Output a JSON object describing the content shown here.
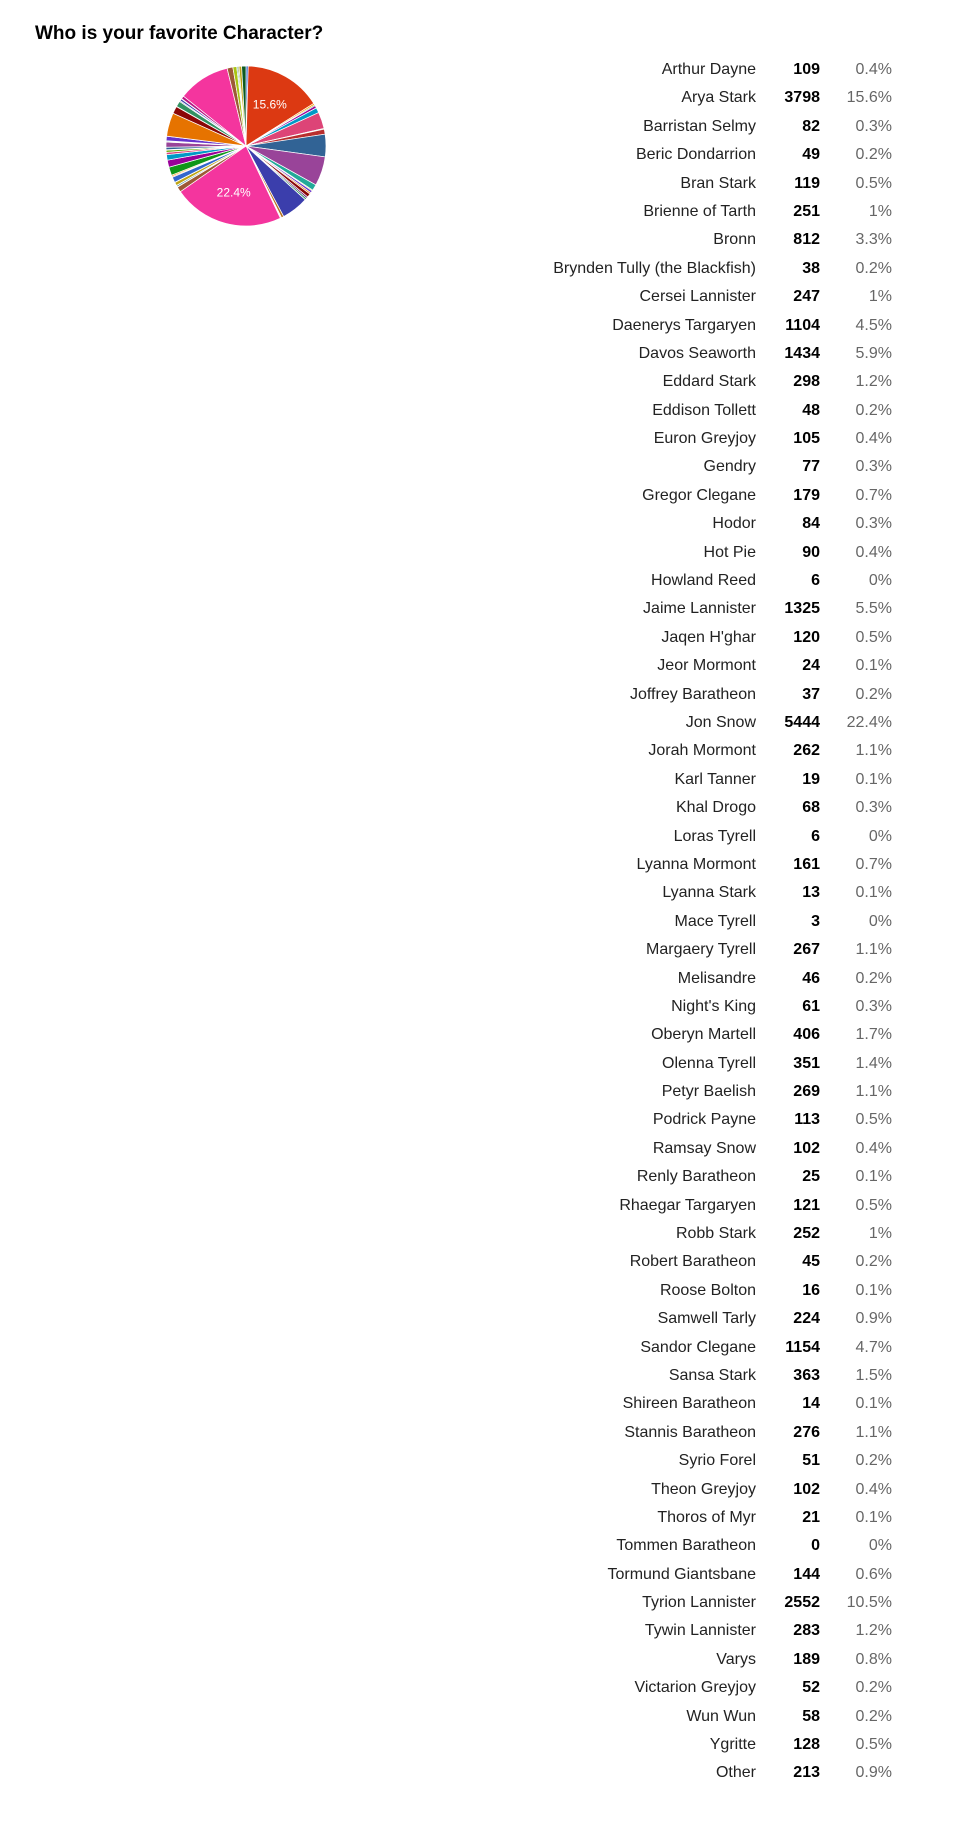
{
  "chart_data": {
    "type": "pie",
    "title": "Who is your favorite Character?",
    "slice_labels_shown": [
      "Jon Snow",
      "Arya Stark"
    ],
    "items": [
      {
        "name": "Arthur Dayne",
        "value": 109,
        "percent": "0.4%",
        "color": "#3366cc"
      },
      {
        "name": "Arya Stark",
        "value": 3798,
        "percent": "15.6%",
        "color": "#dc3912"
      },
      {
        "name": "Barristan Selmy",
        "value": 82,
        "percent": "0.3%",
        "color": "#ff9900"
      },
      {
        "name": "Beric Dondarrion",
        "value": 49,
        "percent": "0.2%",
        "color": "#109618"
      },
      {
        "name": "Bran Stark",
        "value": 119,
        "percent": "0.5%",
        "color": "#990099"
      },
      {
        "name": "Brienne of Tarth",
        "value": 251,
        "percent": "1%",
        "color": "#0099c6"
      },
      {
        "name": "Bronn",
        "value": 812,
        "percent": "3.3%",
        "color": "#dd4477"
      },
      {
        "name": "Brynden Tully (the Blackfish)",
        "value": 38,
        "percent": "0.2%",
        "color": "#66aa00"
      },
      {
        "name": "Cersei Lannister",
        "value": 247,
        "percent": "1%",
        "color": "#b82e2e"
      },
      {
        "name": "Daenerys Targaryen",
        "value": 1104,
        "percent": "4.5%",
        "color": "#316395"
      },
      {
        "name": "Davos Seaworth",
        "value": 1434,
        "percent": "5.9%",
        "color": "#994499"
      },
      {
        "name": "Eddard Stark",
        "value": 298,
        "percent": "1.2%",
        "color": "#22aa99"
      },
      {
        "name": "Eddison Tollett",
        "value": 48,
        "percent": "0.2%",
        "color": "#aaaa11"
      },
      {
        "name": "Euron Greyjoy",
        "value": 105,
        "percent": "0.4%",
        "color": "#6633cc"
      },
      {
        "name": "Gendry",
        "value": 77,
        "percent": "0.3%",
        "color": "#e67300"
      },
      {
        "name": "Gregor Clegane",
        "value": 179,
        "percent": "0.7%",
        "color": "#8b0707"
      },
      {
        "name": "Hodor",
        "value": 84,
        "percent": "0.3%",
        "color": "#651067"
      },
      {
        "name": "Hot Pie",
        "value": 90,
        "percent": "0.4%",
        "color": "#329262"
      },
      {
        "name": "Howland Reed",
        "value": 6,
        "percent": "0%",
        "color": "#5574a6"
      },
      {
        "name": "Jaime Lannister",
        "value": 1325,
        "percent": "5.5%",
        "color": "#3b3eac"
      },
      {
        "name": "Jaqen H'ghar",
        "value": 120,
        "percent": "0.5%",
        "color": "#b77322"
      },
      {
        "name": "Jeor Mormont",
        "value": 24,
        "percent": "0.1%",
        "color": "#16d620"
      },
      {
        "name": "Joffrey Baratheon",
        "value": 37,
        "percent": "0.2%",
        "color": "#b91383"
      },
      {
        "name": "Jon Snow",
        "value": 5444,
        "percent": "22.4%",
        "color": "#f4359e"
      },
      {
        "name": "Jorah Mormont",
        "value": 262,
        "percent": "1.1%",
        "color": "#9c5935"
      },
      {
        "name": "Karl Tanner",
        "value": 19,
        "percent": "0.1%",
        "color": "#a9c413"
      },
      {
        "name": "Khal Drogo",
        "value": 68,
        "percent": "0.3%",
        "color": "#2a778d"
      },
      {
        "name": "Loras Tyrell",
        "value": 6,
        "percent": "0%",
        "color": "#668d1c"
      },
      {
        "name": "Lyanna Mormont",
        "value": 161,
        "percent": "0.7%",
        "color": "#bea413"
      },
      {
        "name": "Lyanna Stark",
        "value": 13,
        "percent": "0.1%",
        "color": "#0c5922"
      },
      {
        "name": "Mace Tyrell",
        "value": 3,
        "percent": "0%",
        "color": "#743411"
      },
      {
        "name": "Margaery Tyrell",
        "value": 267,
        "percent": "1.1%",
        "color": "#3366cc"
      },
      {
        "name": "Melisandre",
        "value": 46,
        "percent": "0.2%",
        "color": "#dc3912"
      },
      {
        "name": "Night's King",
        "value": 61,
        "percent": "0.3%",
        "color": "#ff9900"
      },
      {
        "name": "Oberyn Martell",
        "value": 406,
        "percent": "1.7%",
        "color": "#109618"
      },
      {
        "name": "Olenna Tyrell",
        "value": 351,
        "percent": "1.4%",
        "color": "#990099"
      },
      {
        "name": "Petyr Baelish",
        "value": 269,
        "percent": "1.1%",
        "color": "#0099c6"
      },
      {
        "name": "Podrick Payne",
        "value": 113,
        "percent": "0.5%",
        "color": "#dd4477"
      },
      {
        "name": "Ramsay Snow",
        "value": 102,
        "percent": "0.4%",
        "color": "#66aa00"
      },
      {
        "name": "Renly Baratheon",
        "value": 25,
        "percent": "0.1%",
        "color": "#b82e2e"
      },
      {
        "name": "Rhaegar Targaryen",
        "value": 121,
        "percent": "0.5%",
        "color": "#316395"
      },
      {
        "name": "Robb Stark",
        "value": 252,
        "percent": "1%",
        "color": "#994499"
      },
      {
        "name": "Robert Baratheon",
        "value": 45,
        "percent": "0.2%",
        "color": "#22aa99"
      },
      {
        "name": "Roose Bolton",
        "value": 16,
        "percent": "0.1%",
        "color": "#aaaa11"
      },
      {
        "name": "Samwell Tarly",
        "value": 224,
        "percent": "0.9%",
        "color": "#6633cc"
      },
      {
        "name": "Sandor Clegane",
        "value": 1154,
        "percent": "4.7%",
        "color": "#e67300"
      },
      {
        "name": "Sansa Stark",
        "value": 363,
        "percent": "1.5%",
        "color": "#8b0707"
      },
      {
        "name": "Shireen Baratheon",
        "value": 14,
        "percent": "0.1%",
        "color": "#651067"
      },
      {
        "name": "Stannis Baratheon",
        "value": 276,
        "percent": "1.1%",
        "color": "#329262"
      },
      {
        "name": "Syrio Forel",
        "value": 51,
        "percent": "0.2%",
        "color": "#5574a6"
      },
      {
        "name": "Theon Greyjoy",
        "value": 102,
        "percent": "0.4%",
        "color": "#3b3eac"
      },
      {
        "name": "Thoros of Myr",
        "value": 21,
        "percent": "0.1%",
        "color": "#b77322"
      },
      {
        "name": "Tommen Baratheon",
        "value": 0,
        "percent": "0%",
        "color": "#16d620"
      },
      {
        "name": "Tormund Giantsbane",
        "value": 144,
        "percent": "0.6%",
        "color": "#b91383"
      },
      {
        "name": "Tyrion Lannister",
        "value": 2552,
        "percent": "10.5%",
        "color": "#f4359e"
      },
      {
        "name": "Tywin Lannister",
        "value": 283,
        "percent": "1.2%",
        "color": "#9c5935"
      },
      {
        "name": "Varys",
        "value": 189,
        "percent": "0.8%",
        "color": "#a9c413"
      },
      {
        "name": "Victarion Greyjoy",
        "value": 52,
        "percent": "0.2%",
        "color": "#2a778d"
      },
      {
        "name": "Wun Wun",
        "value": 58,
        "percent": "0.2%",
        "color": "#668d1c"
      },
      {
        "name": "Ygritte",
        "value": 128,
        "percent": "0.5%",
        "color": "#bea413"
      },
      {
        "name": "Other",
        "value": 213,
        "percent": "0.9%",
        "color": "#0c5922"
      }
    ]
  }
}
